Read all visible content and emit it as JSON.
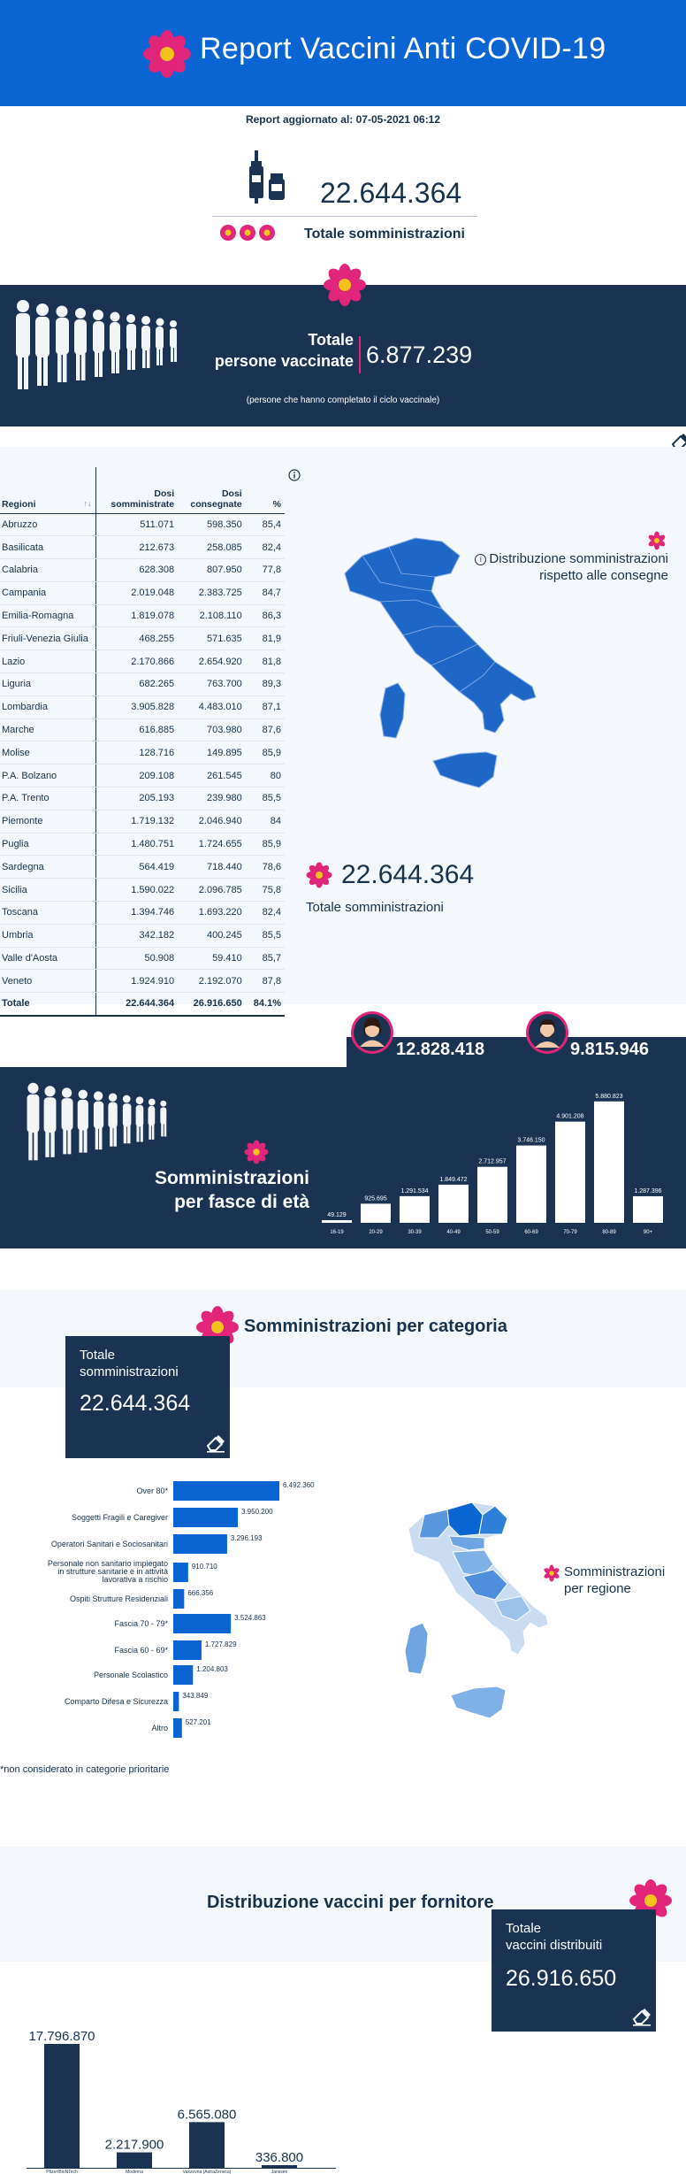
{
  "header": {
    "title": "Report Vaccini Anti COVID-19"
  },
  "report": {
    "updated": "Report aggiornato al: 07-05-2021 06:12"
  },
  "total": {
    "number": "22.644.364",
    "label": "Totale somministrazioni"
  },
  "vaccinated": {
    "label_line1": "Totale",
    "label_line2": "persone vaccinate",
    "number": "6.877.239",
    "note": "(persone che hanno completato il ciclo vaccinale)"
  },
  "table": {
    "headers": {
      "region": "Regioni",
      "sort": "↑↓",
      "doses_administered_1": "Dosi",
      "doses_administered_2": "somministrate",
      "doses_delivered_1": "Dosi",
      "doses_delivered_2": "consegnate",
      "percent": "%"
    },
    "rows": [
      [
        "Abruzzo",
        "511.071",
        "598.350",
        "85,4"
      ],
      [
        "Basilicata",
        "212.673",
        "258.085",
        "82,4"
      ],
      [
        "Calabria",
        "628.308",
        "807.950",
        "77,8"
      ],
      [
        "Campania",
        "2.019.048",
        "2.383.725",
        "84,7"
      ],
      [
        "Emilia-Romagna",
        "1.819.078",
        "2.108.110",
        "86,3"
      ],
      [
        "Friuli-Venezia Giulia",
        "468.255",
        "571.635",
        "81,9"
      ],
      [
        "Lazio",
        "2.170.866",
        "2.654.920",
        "81,8"
      ],
      [
        "Liguria",
        "682.265",
        "763.700",
        "89,3"
      ],
      [
        "Lombardia",
        "3.905.828",
        "4.483.010",
        "87,1"
      ],
      [
        "Marche",
        "616.885",
        "703.980",
        "87,6"
      ],
      [
        "Molise",
        "128.716",
        "149.895",
        "85,9"
      ],
      [
        "P.A. Bolzano",
        "209.108",
        "261.545",
        "80"
      ],
      [
        "P.A. Trento",
        "205.193",
        "239.980",
        "85,5"
      ],
      [
        "Piemonte",
        "1.719.132",
        "2.046.940",
        "84"
      ],
      [
        "Puglia",
        "1.480.751",
        "1.724.655",
        "85,9"
      ],
      [
        "Sardegna",
        "564.419",
        "718.440",
        "78,6"
      ],
      [
        "Sicilia",
        "1.590.022",
        "2.096.785",
        "75,8"
      ],
      [
        "Toscana",
        "1.394.746",
        "1.693.220",
        "82,4"
      ],
      [
        "Umbria",
        "342.182",
        "400.245",
        "85,5"
      ],
      [
        "Valle d'Aosta",
        "50.908",
        "59.410",
        "85,7"
      ],
      [
        "Veneto",
        "1.924.910",
        "2.192.070",
        "87,8"
      ]
    ],
    "total_row": [
      "Totale",
      "22.644.364",
      "26.916.650",
      "84.1%"
    ]
  },
  "map_section": {
    "title_line1": "Distribuzione somministrazioni",
    "title_line2": "rispetto alle consegne",
    "total_number": "22.644.364",
    "total_label": "Totale somministrazioni"
  },
  "gender": {
    "women": "12.828.418",
    "men": "9.815.946"
  },
  "age_section": {
    "title_line1": "Somministrazioni",
    "title_line2": "per fasce di età"
  },
  "categories": {
    "title": "Somministrazioni per categoria",
    "card_label_line1": "Totale",
    "card_label_line2": "somministrazioni",
    "card_number": "22.644.364",
    "note": "*non considerato in categorie prioritarie",
    "region_map_title_line1": "Somministrazioni",
    "region_map_title_line2": "per regione"
  },
  "suppliers": {
    "title": "Distribuzione vaccini per fornitore",
    "card_label_line1": "Totale",
    "card_label_line2": "vaccini distribuiti",
    "card_number": "26.916.650"
  },
  "colors": {
    "navy": "#1b3353",
    "blue": "#0a64d2",
    "accent": "#e0257a",
    "bar_blue": "#0a64d2"
  },
  "chart_data": [
    {
      "type": "bar",
      "title": "Somministrazioni per fasce di età",
      "categories": [
        "16-19",
        "20-29",
        "30-39",
        "40-49",
        "50-59",
        "60-69",
        "70-79",
        "80-89",
        "90+"
      ],
      "values": [
        49129,
        925695,
        1291534,
        1849472,
        2712957,
        3746150,
        4901208,
        5880823,
        1287396
      ],
      "labels": [
        "49.129",
        "925.695",
        "1.291.534",
        "1.849.472",
        "2.712.957",
        "3.746.150",
        "4.901.208",
        "5.880.823",
        "1.287.396"
      ],
      "ylim": [
        0,
        6000000
      ]
    },
    {
      "type": "bar",
      "orientation": "horizontal",
      "title": "Somministrazioni per categoria",
      "categories": [
        "Over 80*",
        "Soggetti Fragili e Caregiver",
        "Operatori Sanitari e Sociosanitari",
        "Personale non sanitario impiegato in strutture sanitarie e in attività lavorativa a rischio",
        "Ospiti Strutture Residenziali",
        "Fascia 70 - 79*",
        "Fascia 60 - 69*",
        "Personale Scolastico",
        "Comparto Difesa e Sicurezza",
        "Altro"
      ],
      "values": [
        6492360,
        3950200,
        3296193,
        910710,
        666356,
        3524863,
        1727829,
        1204803,
        343849,
        527201
      ],
      "labels": [
        "6.492.360",
        "3.950.200",
        "3.296.193",
        "910.710",
        "666.356",
        "3.524.863",
        "1.727.829",
        "1.204.803",
        "343.849",
        "527.201"
      ]
    },
    {
      "type": "bar",
      "title": "Distribuzione vaccini per fornitore",
      "categories": [
        "Pfizer/BioNTech",
        "Moderna",
        "Vaxzevria (AstraZeneca)",
        "Janssen"
      ],
      "values": [
        17796870,
        2217900,
        6565080,
        336800
      ],
      "labels": [
        "17.796.870",
        "2.217.900",
        "6.565.080",
        "336.800"
      ]
    }
  ]
}
